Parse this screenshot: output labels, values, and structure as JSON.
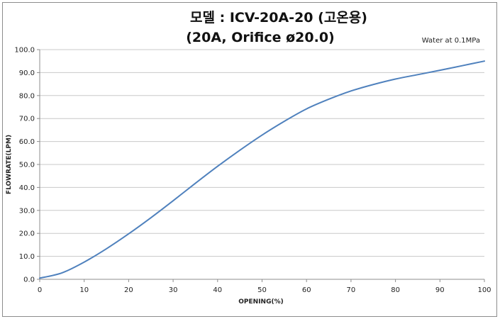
{
  "chart_data": {
    "type": "line",
    "title": "모델 : ICV-20A-20 (고온용)",
    "subtitle": "(20A, Orifice ø20.0)",
    "annotation": "Water at 0.1MPa",
    "xlabel": "OPENING(%)",
    "ylabel": "FLOWRATE(LPM)",
    "xlim": [
      0,
      100
    ],
    "ylim": [
      0,
      100
    ],
    "x_ticks": [
      "0",
      "10",
      "20",
      "30",
      "40",
      "50",
      "60",
      "70",
      "80",
      "90",
      "100"
    ],
    "y_ticks": [
      "0.0",
      "10.0",
      "20.0",
      "30.0",
      "40.0",
      "50.0",
      "60.0",
      "70.0",
      "80.0",
      "90.0",
      "100.0"
    ],
    "grid": true,
    "series": [
      {
        "color": "#4f81bd",
        "x": [
          0,
          5,
          10,
          15,
          20,
          25,
          30,
          35,
          40,
          45,
          50,
          55,
          60,
          65,
          70,
          75,
          80,
          85,
          90,
          95,
          100
        ],
        "y": [
          0.5,
          2.8,
          7.5,
          13.3,
          19.8,
          26.8,
          34.2,
          41.8,
          49.2,
          56.2,
          62.8,
          68.8,
          74.2,
          78.4,
          82.0,
          84.8,
          87.2,
          89.1,
          91.0,
          93.0,
          95.0
        ]
      }
    ]
  }
}
